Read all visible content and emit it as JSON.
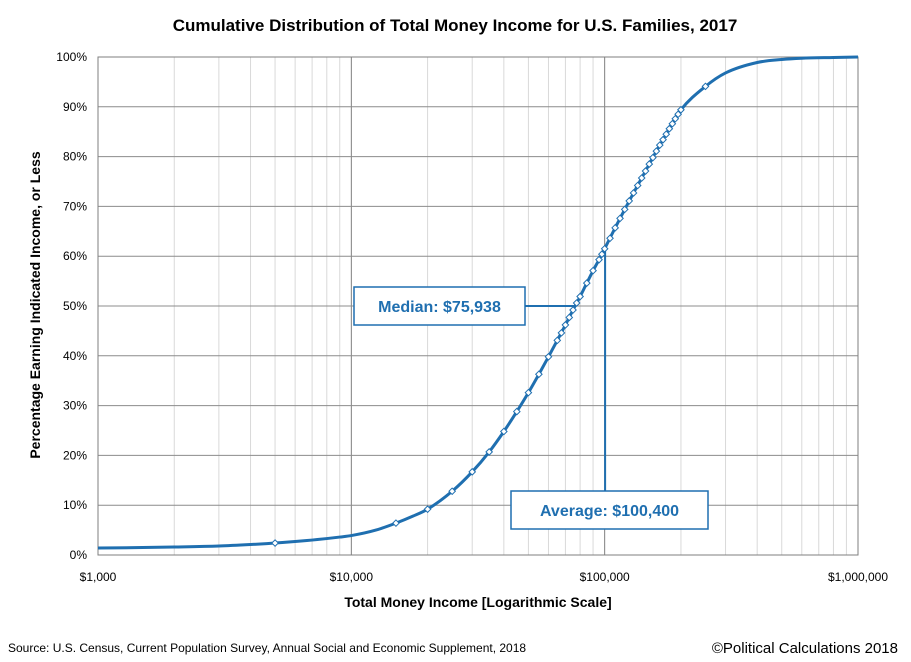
{
  "chart_data": {
    "type": "line",
    "title": "Cumulative Distribution of Total Money Income for U.S. Families, 2017",
    "xlabel": "Total Money Income [Logarithmic Scale]",
    "ylabel": "Percentage Earning Indicated Income, or Less",
    "x_scale": "log",
    "xlim": [
      1000,
      1000000
    ],
    "ylim": [
      0,
      100
    ],
    "x_ticks": [
      {
        "value": 1000,
        "label": "$1,000"
      },
      {
        "value": 10000,
        "label": "$10,000"
      },
      {
        "value": 100000,
        "label": "$100,000"
      },
      {
        "value": 1000000,
        "label": "$1,000,000"
      }
    ],
    "y_ticks": [
      {
        "value": 0,
        "label": "0%"
      },
      {
        "value": 10,
        "label": "10%"
      },
      {
        "value": 20,
        "label": "20%"
      },
      {
        "value": 30,
        "label": "30%"
      },
      {
        "value": 40,
        "label": "40%"
      },
      {
        "value": 50,
        "label": "50%"
      },
      {
        "value": 60,
        "label": "60%"
      },
      {
        "value": 70,
        "label": "70%"
      },
      {
        "value": 80,
        "label": "80%"
      },
      {
        "value": 90,
        "label": "90%"
      },
      {
        "value": 100,
        "label": "100%"
      }
    ],
    "grid": true,
    "line_color": "#1f6fb0",
    "curve": {
      "x": [
        1000,
        1500,
        2000,
        3000,
        4000,
        5000,
        6000,
        7000,
        8000,
        9000,
        10000,
        12500,
        15000,
        17500,
        20000,
        25000,
        30000,
        35000,
        40000,
        45000,
        50000,
        55000,
        60000,
        65000,
        70000,
        75000,
        80000,
        85000,
        90000,
        95000,
        100000,
        110000,
        120000,
        130000,
        140000,
        150000,
        160000,
        170000,
        180000,
        190000,
        200000,
        250000,
        300000,
        400000,
        500000,
        600000,
        800000,
        1000000
      ],
      "y": [
        1.4,
        1.5,
        1.6,
        1.8,
        2.1,
        2.4,
        2.7,
        3.0,
        3.3,
        3.6,
        3.9,
        5.0,
        6.4,
        7.8,
        9.2,
        12.8,
        16.7,
        20.7,
        24.8,
        28.8,
        32.6,
        36.3,
        39.8,
        43.1,
        46.2,
        49.2,
        51.9,
        54.6,
        57.1,
        59.3,
        61.5,
        65.7,
        69.4,
        72.7,
        75.7,
        78.5,
        81.1,
        83.4,
        85.6,
        87.6,
        89.4,
        94.1,
        96.8,
        98.9,
        99.5,
        99.75,
        99.9,
        100.0
      ]
    },
    "markers": {
      "x": [
        5000,
        15000,
        20000,
        25000,
        30000,
        35000,
        40000,
        45000,
        50000,
        55000,
        60000,
        65000,
        67500,
        70000,
        72500,
        75000,
        77500,
        80000,
        85000,
        90000,
        95000,
        97500,
        100000,
        105000,
        110000,
        115000,
        120000,
        125000,
        130000,
        135000,
        140000,
        145000,
        150000,
        155000,
        160000,
        165000,
        170000,
        175000,
        180000,
        185000,
        190000,
        195000,
        200000,
        250000
      ],
      "y": [
        2.4,
        6.4,
        9.2,
        12.8,
        16.7,
        20.7,
        24.8,
        28.8,
        32.6,
        36.3,
        39.8,
        43.1,
        44.6,
        46.2,
        47.7,
        49.2,
        50.6,
        51.9,
        54.6,
        57.1,
        59.3,
        60.4,
        61.5,
        63.6,
        65.7,
        67.6,
        69.4,
        71.1,
        72.7,
        74.2,
        75.7,
        77.1,
        78.5,
        79.8,
        81.1,
        82.3,
        83.4,
        84.5,
        85.6,
        86.6,
        87.6,
        88.5,
        89.4,
        94.1
      ]
    },
    "annotations": [
      {
        "text": "Median: $75,938",
        "x": 75938,
        "y": 50
      },
      {
        "text": "Average: $100,400",
        "x": 100400,
        "y": 62.2
      }
    ]
  },
  "footer": {
    "source": "Source: U.S. Census, Current Population Survey, Annual Social and Economic Supplement, 2018",
    "credit": "©Political Calculations 2018"
  }
}
